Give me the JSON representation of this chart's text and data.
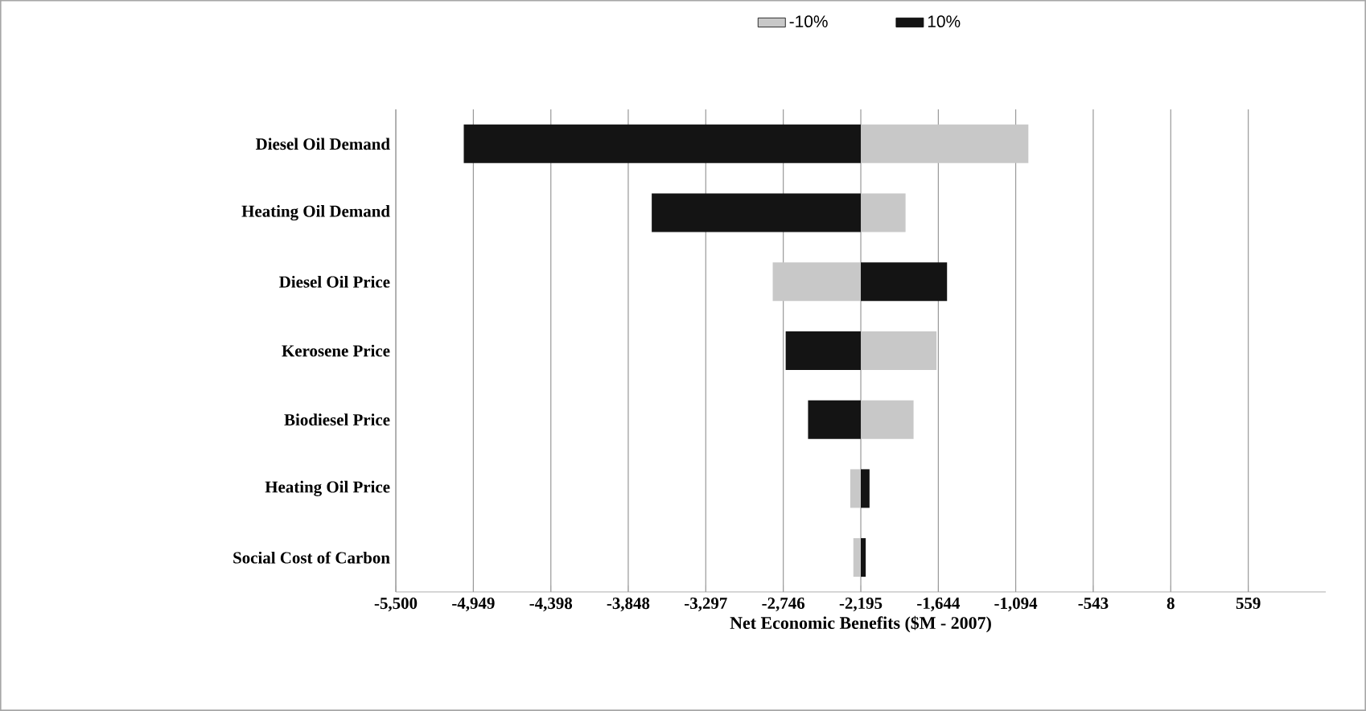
{
  "chart_data": {
    "type": "bar",
    "orientation": "horizontal",
    "xlabel": "Net Economic Benefits ($M - 2007)",
    "categories": [
      "Diesel Oil Demand",
      "Heating Oil Demand",
      "Diesel Oil Price",
      "Kerosene Price",
      "Biodiesel Price",
      "Heating Oil Price",
      "Social Cost of Carbon"
    ],
    "series": [
      {
        "name": "-10%",
        "color": "#c8c8c8",
        "base": [
          -2195,
          -2195,
          -2195,
          -2195,
          -2195,
          -2195,
          -2195
        ],
        "values": [
          1191,
          318,
          -626,
          538,
          375,
          -75,
          -53
        ]
      },
      {
        "name": "10%",
        "color": "#141414",
        "base": [
          -2195,
          -2195,
          -2195,
          -2195,
          -2195,
          -2195,
          -2195
        ],
        "values": [
          -2822,
          -1486,
          613,
          -534,
          -375,
          62,
          35
        ]
      }
    ],
    "xlim": [
      -5500,
      1110
    ],
    "xticks": [
      {
        "value": -5500,
        "label": "-5,500"
      },
      {
        "value": -4949,
        "label": "-4,949"
      },
      {
        "value": -4398,
        "label": "-4,398"
      },
      {
        "value": -3848,
        "label": "-3,848"
      },
      {
        "value": -3297,
        "label": "-3,297"
      },
      {
        "value": -2746,
        "label": "-2,746"
      },
      {
        "value": -2195,
        "label": "-2,195"
      },
      {
        "value": -1644,
        "label": "-1,644"
      },
      {
        "value": -1094,
        "label": "-1,094"
      },
      -543,
      8,
      559
    ],
    "grid": "x",
    "legend": "top"
  }
}
